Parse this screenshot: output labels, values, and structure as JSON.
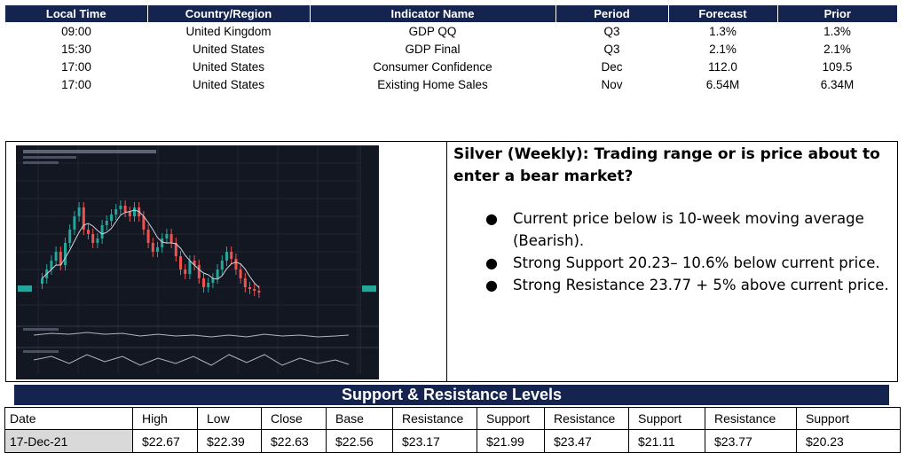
{
  "calendar": {
    "headers": [
      "Local Time",
      "Country/Region",
      "Indicator Name",
      "Period",
      "Forecast",
      "Prior"
    ],
    "rows": [
      [
        "09:00",
        "United Kingdom",
        "GDP QQ",
        "Q3",
        "1.3%",
        "1.3%"
      ],
      [
        "15:30",
        "United States",
        "GDP Final",
        "Q3",
        "2.1%",
        "2.1%"
      ],
      [
        "17:00",
        "United States",
        "Consumer Confidence",
        "Dec",
        "112.0",
        "109.5"
      ],
      [
        "17:00",
        "United States",
        "Existing Home Sales",
        "Nov",
        "6.54M",
        "6.34M"
      ]
    ]
  },
  "analysis": {
    "headline": "Silver (Weekly): Trading range or is price about to enter a bear market?",
    "bullets": [
      "Current price below is 10-week moving average (Bearish).",
      "Strong Support 20.23– 10.6% below current price.",
      "Strong Resistance 23.77 + 5% above current price."
    ]
  },
  "levels": {
    "title": "Support & Resistance Levels",
    "headers": [
      "Date",
      "High",
      "Low",
      "Close",
      "Base",
      "Resistance",
      "Support",
      "Resistance",
      "Support",
      "Resistance",
      "Support"
    ],
    "values": [
      "17-Dec-21",
      "$22.67",
      "$22.39",
      "$22.63",
      "$22.56",
      "$23.17",
      "$21.99",
      "$23.47",
      "$21.11",
      "$23.77",
      "$20.23"
    ]
  },
  "colors": {
    "header_navy": "#15244f",
    "chart_bg": "#131722",
    "candle_up": "#26a69a",
    "candle_down": "#ef5350",
    "moving_average": "#d1d4dc"
  }
}
